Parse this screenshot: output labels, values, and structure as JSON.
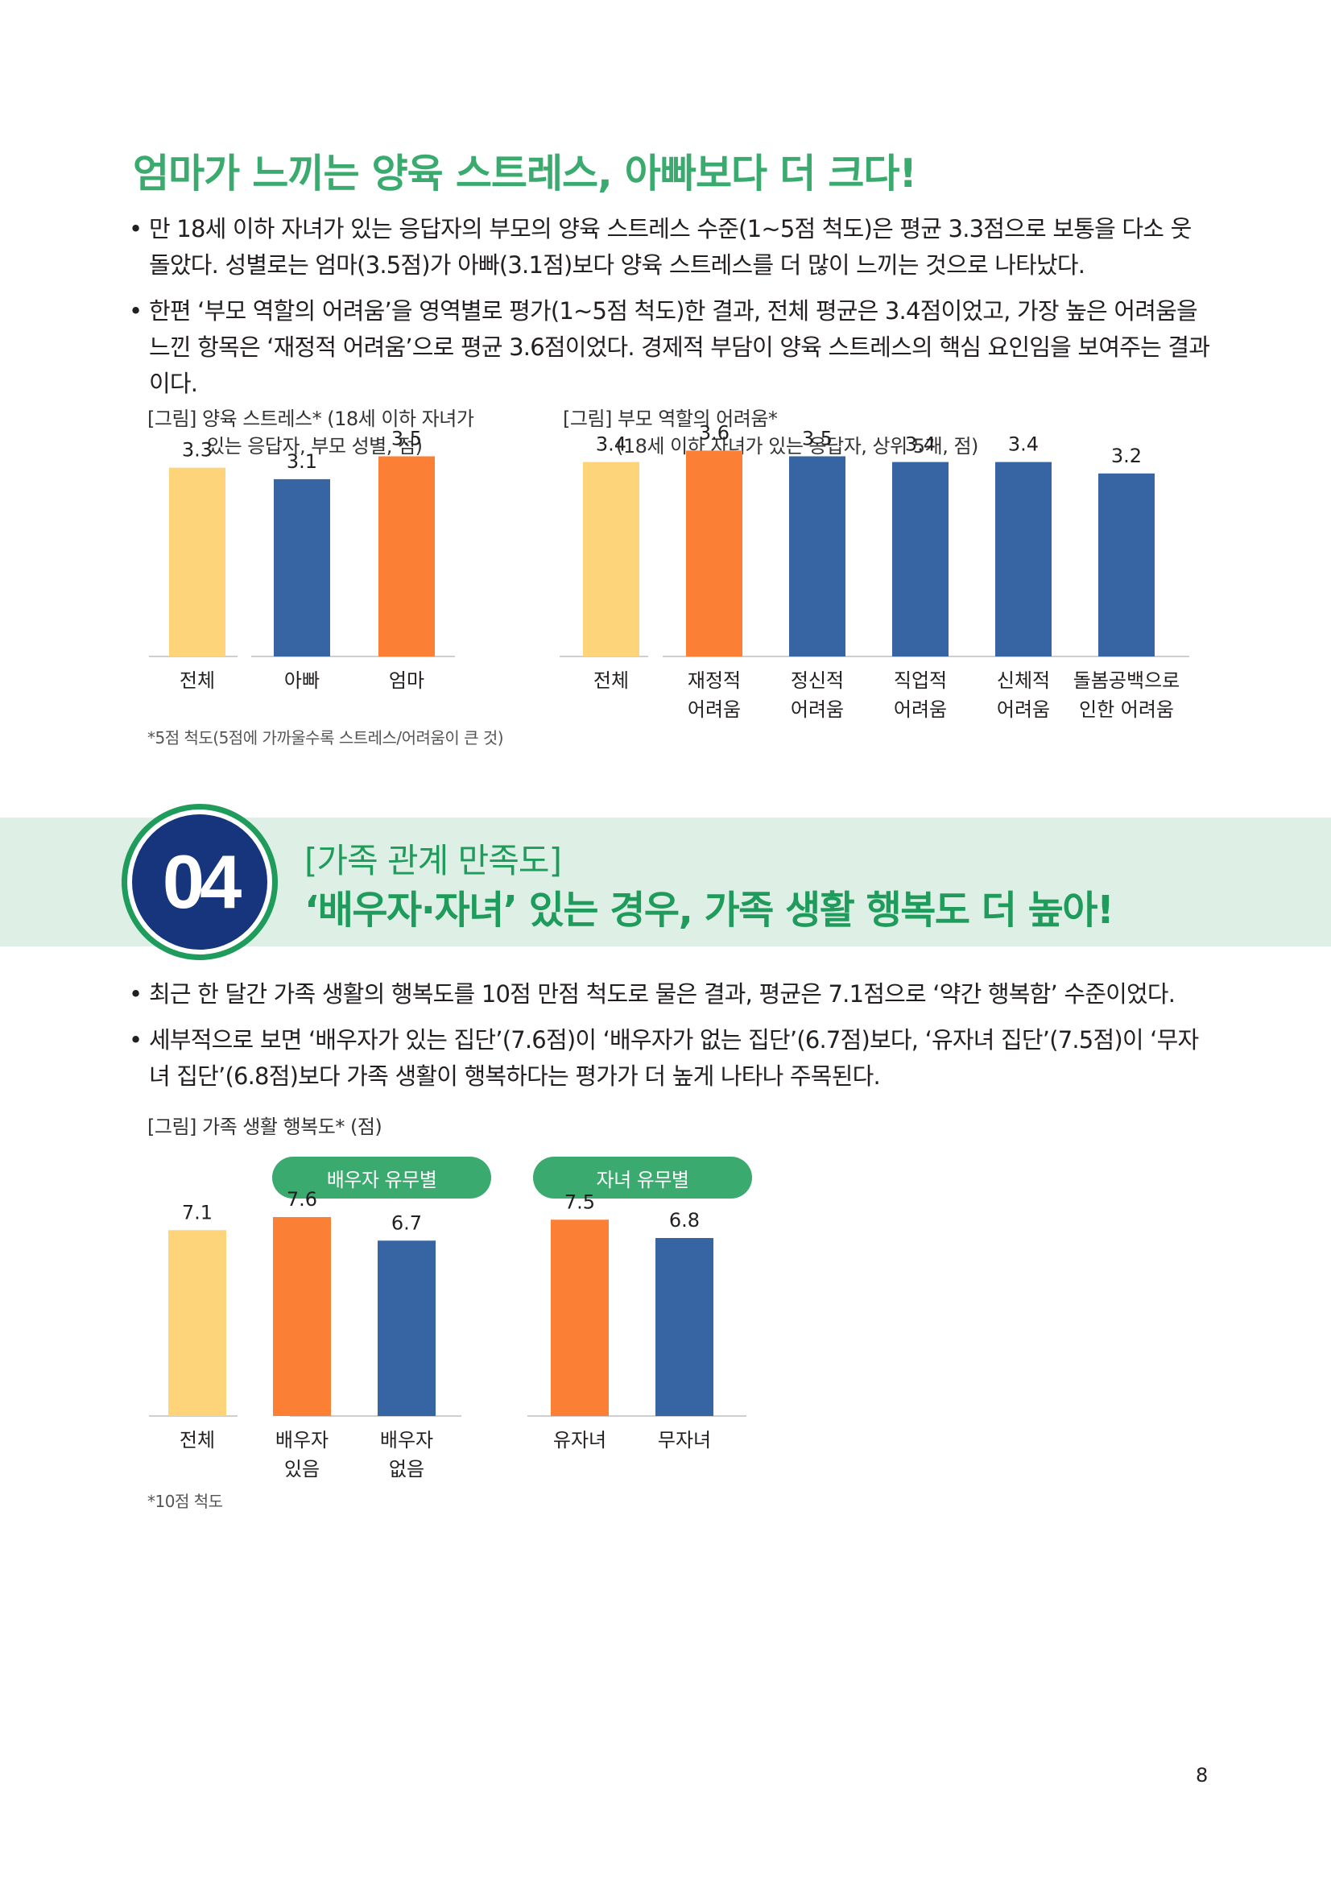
{
  "section3": {
    "title": "엄마가 느끼는 양육 스트레스, 아빠보다 더 크다!",
    "bullets": [
      "만 18세 이하 자녀가 있는 응답자의 부모의 양육 스트레스 수준(1~5점 척도)은 평균 3.3점으로 보통을 다소 웃돌았다. 성별로는 엄마(3.5점)가 아빠(3.1점)보다 양육 스트레스를 더 많이 느끼는 것으로 나타났다.",
      "한편 ‘부모 역할의 어려움’을 영역별로 평가(1~5점 척도)한 결과, 전체 평균은 3.4점이었고, 가장 높은 어려움을 느낀 항목은 ‘재정적 어려움’으로 평균 3.6점이었다. 경제적 부담이 양육 스트레스의 핵심 요인임을 보여주는 결과이다."
    ],
    "chart1_caption_line1": "[그림] 양육 스트레스* (18세 이하 자녀가",
    "chart1_caption_line2": "있는 응답자, 부모 성별, 점)",
    "chart2_caption_line1": "[그림] 부모 역할의 어려움*",
    "chart2_caption_line2": "(18세 이하 자녀가 있는 응답자, 상위 5개, 점)",
    "footnote": "*5점 척도(5점에 가까울수록 스트레스/어려움이 큰 것)"
  },
  "section4": {
    "number": "04",
    "subtitle": "[가족 관계 만족도]",
    "title": "‘배우자·자녀’ 있는 경우, 가족 생활 행복도 더 높아!",
    "bullets": [
      "최근 한 달간 가족 생활의 행복도를 10점 만점 척도로 물은 결과, 평균은 7.1점으로 ‘약간 행복함’ 수준이었다.",
      "세부적으로 보면 ‘배우자가 있는 집단’(7.6점)이 ‘배우자가 없는 집단’(6.7점)보다, ‘유자녀 집단’(7.5점)이 ‘무자녀 집단’(6.8점)보다 가족 생활이 행복하다는 평가가 더 높게 나타나 주목된다."
    ],
    "chart_caption": "[그림] 가족 생활 행복도* (점)",
    "group_spouse": "배우자 유무별",
    "group_children": "자녀 유무별",
    "footnote": "*10점 척도"
  },
  "colors": {
    "total": "#fdd47a",
    "highlight": "#fb8035",
    "blue": "#3764a3",
    "green": "#3aaa6e",
    "dark_green": "#1f9c5c",
    "navy": "#16357c"
  },
  "page_number": "8",
  "chart_data": [
    {
      "type": "bar",
      "title": "양육 스트레스",
      "categories": [
        [
          "전체"
        ],
        [
          "아빠"
        ],
        [
          "엄마"
        ]
      ],
      "values": [
        3.3,
        3.1,
        3.5
      ],
      "colors": [
        "#fdd47a",
        "#3764a3",
        "#fb8035"
      ],
      "ylim": [
        0,
        5
      ]
    },
    {
      "type": "bar",
      "title": "부모 역할의 어려움",
      "categories": [
        [
          "전체"
        ],
        [
          "재정적",
          "어려움"
        ],
        [
          "정신적",
          "어려움"
        ],
        [
          "직업적",
          "어려움"
        ],
        [
          "신체적",
          "어려움"
        ],
        [
          "돌봄공백으로",
          "인한 어려움"
        ]
      ],
      "values": [
        3.4,
        3.6,
        3.5,
        3.4,
        3.4,
        3.2
      ],
      "colors": [
        "#fdd47a",
        "#fb8035",
        "#3764a3",
        "#3764a3",
        "#3764a3",
        "#3764a3"
      ],
      "ylim": [
        0,
        5
      ]
    },
    {
      "type": "bar",
      "title": "가족 생활 행복도",
      "categories": [
        [
          "전체"
        ],
        [
          "배우자",
          "있음"
        ],
        [
          "배우자",
          "없음"
        ]
      ],
      "values": [
        7.1,
        7.6,
        6.7
      ],
      "colors": [
        "#fdd47a",
        "#fb8035",
        "#3764a3"
      ],
      "ylim": [
        0,
        10
      ]
    },
    {
      "type": "bar",
      "title": "가족 생활 행복도 (자녀 유무별)",
      "categories": [
        [
          "유자녀"
        ],
        [
          "무자녀"
        ]
      ],
      "values": [
        7.5,
        6.8
      ],
      "colors": [
        "#fb8035",
        "#3764a3"
      ],
      "ylim": [
        0,
        10
      ]
    }
  ]
}
